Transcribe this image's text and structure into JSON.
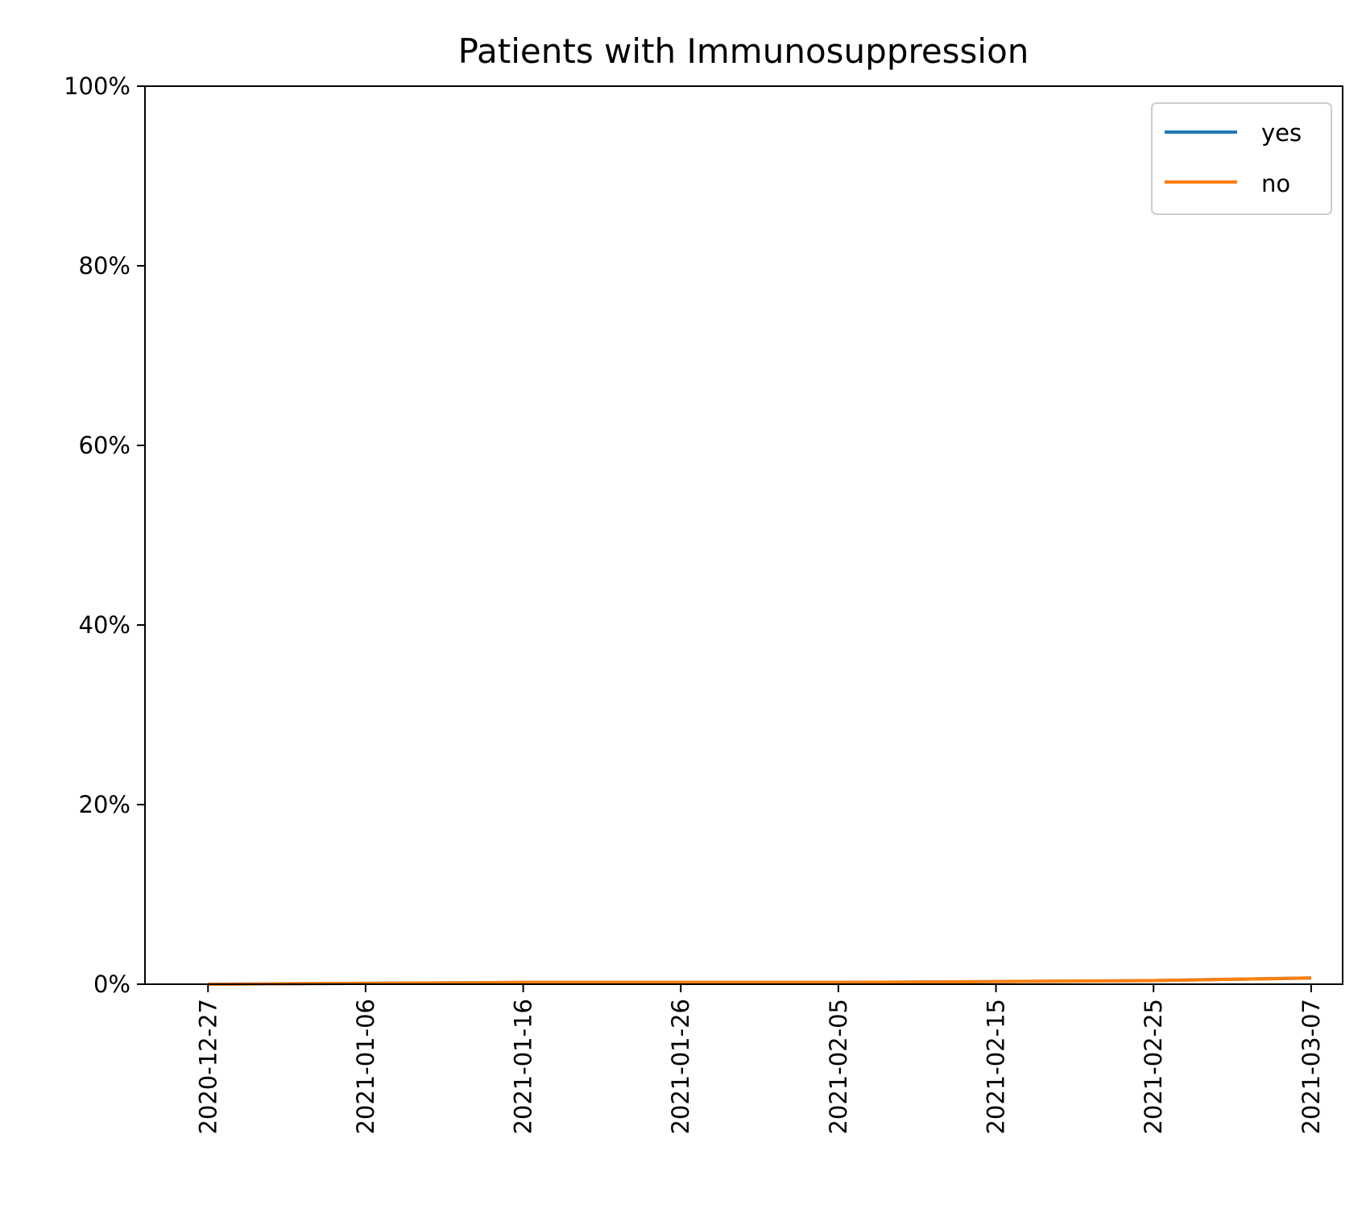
{
  "chart_data": {
    "type": "line",
    "title": "Patients with Immunosuppression",
    "xlabel": "",
    "ylabel": "",
    "x": [
      "2020-12-27",
      "2021-01-06",
      "2021-01-16",
      "2021-01-26",
      "2021-02-05",
      "2021-02-15",
      "2021-02-25",
      "2021-03-07"
    ],
    "x_ticks": [
      "2020-12-27",
      "2021-01-06",
      "2021-01-16",
      "2021-01-26",
      "2021-02-05",
      "2021-02-15",
      "2021-02-25",
      "2021-03-07"
    ],
    "xlim": [
      "2020-12-23",
      "2021-03-09"
    ],
    "y_ticks": [
      "0%",
      "20%",
      "40%",
      "60%",
      "80%",
      "100%"
    ],
    "ylim": [
      0,
      100
    ],
    "y_unit": "%",
    "grid": false,
    "legend_position": "top-right",
    "series": [
      {
        "name": "yes",
        "color": "#1f77b4",
        "values": [
          0.0,
          0.1,
          0.2,
          0.2,
          0.2,
          0.3,
          0.4,
          0.7
        ]
      },
      {
        "name": "no",
        "color": "#ff7f0e",
        "values": [
          0.0,
          0.1,
          0.2,
          0.2,
          0.2,
          0.3,
          0.4,
          0.7
        ]
      }
    ]
  }
}
